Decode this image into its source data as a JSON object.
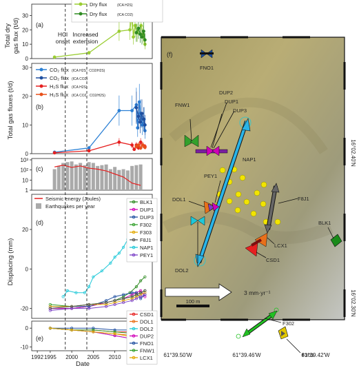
{
  "panel_labels": {
    "a": "(a)",
    "b": "(b)",
    "c": "(c)",
    "d": "(d)",
    "e": "(e)",
    "f": "(f)"
  },
  "annotations": {
    "hcl_1": "HCl",
    "hcl_2": "onset",
    "inc_1": "Increased",
    "inc_2": "extension"
  },
  "colors": {
    "co2_green": "#9acd32",
    "dry_green": "#2e8b22",
    "co2_blue": "#2a7fd4",
    "co2_blue2": "#1f4fa0",
    "h2s_red": "#e62020",
    "h2s_red2": "#e8501a"
  },
  "chart_data": [
    {
      "type": "line",
      "panel": "a",
      "ylabel_1": "Total dry",
      "ylabel_2": "gas flux (t/d)",
      "ylim": [
        0,
        35
      ],
      "yticks": [
        "0",
        "10",
        "20",
        "30"
      ],
      "series": [
        {
          "name": "Dry flux",
          "sub": "(ICA H2S)",
          "color": "#9acd32",
          "x": [
            1996,
            2004,
            2011,
            2013.5,
            2014,
            2014.3,
            2014.7,
            2015.2,
            2016.1,
            2016.6,
            2017
          ],
          "y": [
            1,
            4,
            19,
            20,
            31,
            15,
            23,
            18,
            23,
            17,
            10
          ]
        },
        {
          "name": "Dry flux",
          "sub": "(ICA CO2)",
          "color": "#2e8b22",
          "x": [
            2015,
            2015.5,
            2015.9,
            2016.3,
            2016.7,
            2017
          ],
          "y": [
            18,
            21,
            17,
            15,
            19,
            13
          ]
        }
      ]
    },
    {
      "type": "line",
      "panel": "b",
      "ylabel": "Total gas fluxes (t/d)",
      "ylim": [
        0,
        30
      ],
      "yticks": [
        "0",
        "10",
        "20",
        "30"
      ],
      "series": [
        {
          "name": "CO₂ flux",
          "sub": "(ICA H2S · CO2/H2S)",
          "color": "#2a7fd4",
          "x": [
            1996,
            2004,
            2011,
            2014,
            2015,
            2015.3,
            2015.7,
            2016,
            2016.4,
            2016.8,
            2017
          ],
          "y": [
            0.5,
            2,
            15,
            15,
            17,
            9,
            18,
            14,
            10,
            12,
            8
          ]
        },
        {
          "name": "CO₂ flux",
          "sub": "(ICA CO2)",
          "color": "#1f4fa0",
          "x": [
            2015,
            2015.5,
            2015.9,
            2016.3,
            2016.7,
            2017
          ],
          "y": [
            16,
            13,
            11,
            14,
            12,
            10
          ]
        },
        {
          "name": "H₂S flux",
          "sub": "(ICA H2S)",
          "color": "#e62020",
          "x": [
            1996,
            2004,
            2011,
            2014,
            2014.5,
            2015,
            2015.5,
            2016,
            2016.5,
            2017
          ],
          "y": [
            0.3,
            1,
            4,
            3,
            1.5,
            3,
            2,
            4,
            3,
            2.5
          ]
        },
        {
          "name": "H₂S flux",
          "sub": "(ICA CO2 · CO2/H2S)",
          "color": "#e8501a",
          "x": [
            2015,
            2015.5,
            2016,
            2016.5,
            2017
          ],
          "y": [
            2.5,
            3,
            2,
            3,
            2.2
          ]
        }
      ]
    },
    {
      "type": "bar",
      "panel": "c",
      "yticks": [
        "1",
        "10",
        "10²",
        "10³"
      ],
      "legend_energy": "Seismic energy (Joules)",
      "legend_quakes": "Earthquakes per year",
      "years": [
        1996,
        1997,
        1998,
        1999,
        2000,
        2001,
        2002,
        2003,
        2004,
        2005,
        2006,
        2007,
        2008,
        2009,
        2010,
        2011,
        2012,
        2013,
        2014,
        2015,
        2016
      ],
      "quakes": [
        120,
        250,
        500,
        600,
        700,
        350,
        500,
        300,
        600,
        500,
        250,
        300,
        350,
        120,
        200,
        100,
        120,
        90,
        250,
        300,
        350
      ],
      "energy_x": [
        1996,
        1998,
        2000,
        2002,
        2004,
        2006,
        2008,
        2010,
        2012,
        2014,
        2016
      ],
      "energy_y": [
        200,
        300,
        180,
        250,
        150,
        120,
        80,
        40,
        20,
        5,
        3
      ]
    },
    {
      "type": "line",
      "panel": "d",
      "ylabel": "Displacing (mm)",
      "ylim": [
        -25,
        35
      ],
      "yticks": [
        "0",
        "20",
        "-20"
      ],
      "series": [
        {
          "name": "BLK1",
          "color": "#2e8b22",
          "x": [
            1995,
            2000,
            2004,
            2008,
            2010,
            2012,
            2013.5,
            2015,
            2016,
            2017
          ],
          "y": [
            -20,
            -20,
            -19,
            -17,
            -16,
            -14,
            -12,
            -9,
            -6,
            -4
          ]
        },
        {
          "name": "DUP1",
          "color": "#d000b8",
          "x": [
            1995,
            2000,
            2004,
            2008,
            2010,
            2012,
            2014,
            2015,
            2016,
            2017
          ],
          "y": [
            -20,
            -20,
            -19,
            -17,
            -16,
            -15,
            -13,
            -12,
            -11,
            -14
          ]
        },
        {
          "name": "DUP3",
          "color": "#1f4fa0",
          "x": [
            1995,
            2000,
            2004,
            2008,
            2010,
            2012,
            2014,
            2015,
            2016,
            2017
          ],
          "y": [
            -19,
            -19,
            -19,
            -16,
            -14,
            -13,
            -12,
            -12,
            -15,
            -13
          ]
        },
        {
          "name": "F302",
          "color": "#33a02c",
          "x": [
            1995,
            2000,
            2004,
            2008,
            2010,
            2012,
            2014,
            2015,
            2016,
            2017
          ],
          "y": [
            -18,
            -19,
            -18,
            -17,
            -16,
            -15,
            -14,
            -13,
            -12,
            -11
          ]
        },
        {
          "name": "F303",
          "color": "#e2a800",
          "x": [
            1995,
            2000,
            2004,
            2008,
            2010,
            2012,
            2014,
            2015,
            2016,
            2017
          ],
          "y": [
            -19,
            -19,
            -18,
            -18,
            -17,
            -16,
            -15,
            -14,
            -13,
            -12
          ]
        },
        {
          "name": "F8J1",
          "color": "#555555",
          "x": [
            1995,
            2000,
            2004,
            2008,
            2010,
            2012,
            2014,
            2015,
            2016,
            2017
          ],
          "y": [
            -20,
            -19,
            -18,
            -17,
            -16,
            -15,
            -14,
            -13,
            -12,
            -11
          ]
        },
        {
          "name": "NAP1",
          "color": "#1ec8d8",
          "x": [
            1998,
            1999,
            2001,
            2003,
            2004,
            2005,
            2007,
            2009,
            2010,
            2011,
            2012,
            2013,
            2014,
            2015,
            2016,
            2017
          ],
          "y": [
            -14,
            -11,
            -12,
            -12,
            -9,
            -4,
            -1,
            3,
            6,
            8,
            11,
            15,
            19,
            22,
            27,
            30
          ]
        },
        {
          "name": "PEY1",
          "color": "#7a3fc7",
          "x": [
            1995,
            2000,
            2004,
            2008,
            2010,
            2012,
            2014,
            2015,
            2016,
            2017
          ],
          "y": [
            -21,
            -20,
            -20,
            -19,
            -18,
            -17,
            -16,
            -15,
            -14,
            -13
          ]
        }
      ]
    },
    {
      "type": "line",
      "panel": "e",
      "xlabel": "Date",
      "xticks": [
        "1992",
        "1995",
        "2000",
        "2005",
        "2010",
        "2015"
      ],
      "xtick_values": [
        1992,
        1995,
        2000,
        2005,
        2010,
        2015
      ],
      "ylim": [
        -12,
        3
      ],
      "yticks": [
        "0",
        "-10"
      ],
      "series": [
        {
          "name": "CSD1",
          "color": "#e62020",
          "x": [
            1995,
            2000,
            2005,
            2010,
            2015,
            2017
          ],
          "y": [
            0,
            -1,
            -1,
            -2,
            -2,
            -3
          ]
        },
        {
          "name": "DOL1",
          "color": "#e8701a",
          "x": [
            1995,
            2000,
            2005,
            2010,
            2015,
            2017
          ],
          "y": [
            0,
            -1,
            -2,
            -3,
            -4,
            -5
          ]
        },
        {
          "name": "DOL2",
          "color": "#1ec8d8",
          "x": [
            1995,
            2000,
            2005,
            2010,
            2015,
            2017
          ],
          "y": [
            0,
            -1,
            -2,
            -4,
            -6,
            -8
          ]
        },
        {
          "name": "DUP2",
          "color": "#d000b8",
          "x": [
            1995,
            2000,
            2005,
            2010,
            2015,
            2017
          ],
          "y": [
            0,
            -1,
            -2,
            -4,
            -6,
            -10
          ]
        },
        {
          "name": "FNO1",
          "color": "#1f4fa0",
          "x": [
            1995,
            2000,
            2005,
            2010,
            2015,
            2017
          ],
          "y": [
            0,
            0,
            0,
            -1,
            -1,
            -2
          ]
        },
        {
          "name": "FNW1",
          "color": "#33a02c",
          "x": [
            1995,
            2000,
            2005,
            2010,
            2015,
            2017
          ],
          "y": [
            0,
            -1,
            -1,
            -2,
            -3,
            -4
          ]
        },
        {
          "name": "LCX1",
          "color": "#e2a800",
          "x": [
            1995,
            2000,
            2005,
            2010,
            2015,
            2017
          ],
          "y": [
            0,
            -1,
            -2,
            -3,
            -5,
            -8
          ]
        }
      ]
    }
  ],
  "map": {
    "label": "(f)",
    "lat_top": "16°02.40'N",
    "lat_bottom": "16°02.30'N",
    "lon_ticks": [
      "61°39.50'W",
      "61°39.46'W",
      "61°39.42'W"
    ],
    "scale": "100 m",
    "velocity": "3 mm·yr⁻¹",
    "stations": [
      "FNO1",
      "DUP2",
      "DUP1",
      "DUP3",
      "FNW1",
      "NAP1",
      "PEY1",
      "DOL1",
      "F8J1",
      "BLK1",
      "LCX1",
      "CSD1",
      "DOL2",
      "F302",
      "F303"
    ]
  }
}
